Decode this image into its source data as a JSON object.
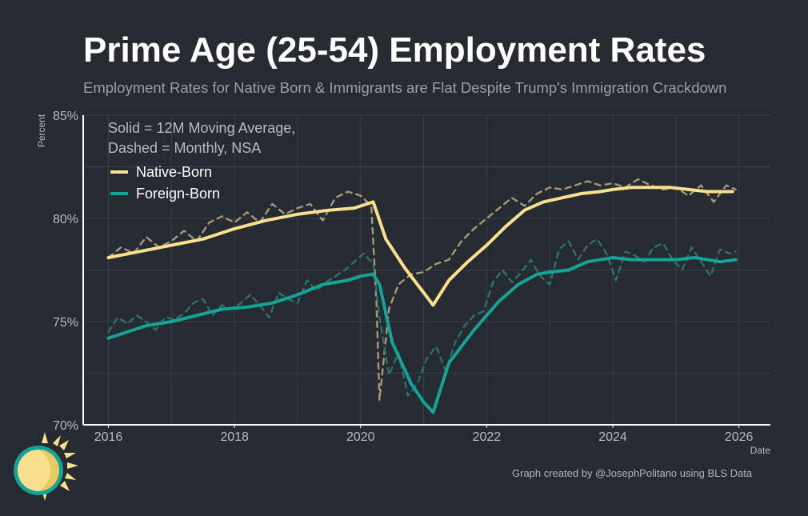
{
  "chart_data": {
    "type": "line",
    "title": "Prime Age (25-54) Employment Rates",
    "subtitle": "Employment Rates for Native Born & Immigrants are Flat Despite Trump's Immigration Crackdown",
    "xlabel": "Date",
    "ylabel": "Percent",
    "xlim": [
      2015.6,
      2026.5
    ],
    "ylim": [
      70,
      85
    ],
    "x_ticks": [
      2016,
      2018,
      2020,
      2022,
      2024,
      2026
    ],
    "x_tick_labels": [
      "2016",
      "2018",
      "2020",
      "2022",
      "2024",
      "2026"
    ],
    "y_ticks": [
      70,
      75,
      80,
      85
    ],
    "y_tick_labels": [
      "70%",
      "75%",
      "80%",
      "85%"
    ],
    "grid": true,
    "annotation_lines": [
      "Solid = 12M Moving Average,",
      "Dashed = Monthly, NSA"
    ],
    "legend": [
      {
        "name": "Native-Born",
        "color": "#f8e08e"
      },
      {
        "name": "Foreign-Born",
        "color": "#14a397"
      }
    ],
    "series": [
      {
        "name": "Native-Born 12M Moving Average",
        "style": "solid",
        "color": "#f8e08e",
        "x": [
          2016.0,
          2016.5,
          2017.0,
          2017.5,
          2018.0,
          2018.5,
          2019.0,
          2019.5,
          2019.9,
          2020.2,
          2020.4,
          2020.7,
          2021.0,
          2021.15,
          2021.4,
          2021.7,
          2022.0,
          2022.3,
          2022.6,
          2022.9,
          2023.2,
          2023.5,
          2023.8,
          2024.0,
          2024.3,
          2024.6,
          2024.9,
          2025.2,
          2025.5,
          2025.9
        ],
        "y": [
          78.1,
          78.4,
          78.7,
          79.0,
          79.5,
          79.9,
          80.2,
          80.4,
          80.5,
          80.8,
          79.0,
          77.6,
          76.4,
          75.8,
          77.0,
          77.9,
          78.7,
          79.6,
          80.4,
          80.8,
          81.0,
          81.2,
          81.3,
          81.4,
          81.5,
          81.5,
          81.5,
          81.4,
          81.3,
          81.3
        ]
      },
      {
        "name": "Native-Born Monthly NSA",
        "style": "dashed",
        "color": "#a7987a",
        "x": [
          2016.0,
          2016.2,
          2016.4,
          2016.6,
          2016.8,
          2017.0,
          2017.2,
          2017.4,
          2017.6,
          2017.8,
          2018.0,
          2018.2,
          2018.4,
          2018.6,
          2018.8,
          2019.0,
          2019.2,
          2019.4,
          2019.6,
          2019.8,
          2020.0,
          2020.17,
          2020.25,
          2020.3,
          2020.45,
          2020.6,
          2020.8,
          2021.0,
          2021.2,
          2021.4,
          2021.6,
          2021.8,
          2022.0,
          2022.2,
          2022.4,
          2022.6,
          2022.8,
          2023.0,
          2023.2,
          2023.4,
          2023.6,
          2023.8,
          2024.0,
          2024.2,
          2024.4,
          2024.6,
          2024.8,
          2025.0,
          2025.2,
          2025.4,
          2025.6,
          2025.8,
          2025.95
        ],
        "y": [
          78.1,
          78.6,
          78.3,
          79.1,
          78.6,
          78.9,
          79.4,
          78.9,
          79.8,
          80.1,
          79.8,
          80.3,
          79.8,
          80.7,
          80.2,
          80.5,
          80.7,
          79.9,
          81.0,
          81.3,
          81.1,
          80.6,
          76.0,
          71.2,
          75.6,
          76.8,
          77.3,
          77.4,
          77.8,
          78.0,
          78.9,
          79.5,
          80.0,
          80.5,
          81.0,
          80.6,
          81.2,
          81.5,
          81.4,
          81.6,
          81.8,
          81.6,
          81.7,
          81.5,
          81.9,
          81.6,
          81.4,
          81.5,
          81.1,
          81.6,
          80.8,
          81.6,
          81.4
        ]
      },
      {
        "name": "Foreign-Born 12M Moving Average",
        "style": "solid",
        "color": "#14a397",
        "x": [
          2016.0,
          2016.3,
          2016.6,
          2017.0,
          2017.4,
          2017.8,
          2018.2,
          2018.6,
          2019.0,
          2019.4,
          2019.8,
          2020.0,
          2020.2,
          2020.3,
          2020.5,
          2020.8,
          2021.0,
          2021.15,
          2021.4,
          2021.8,
          2022.2,
          2022.5,
          2022.8,
          2023.0,
          2023.3,
          2023.6,
          2024.0,
          2024.3,
          2024.6,
          2025.0,
          2025.3,
          2025.7,
          2025.95
        ],
        "y": [
          74.2,
          74.5,
          74.8,
          75.0,
          75.3,
          75.6,
          75.7,
          75.9,
          76.3,
          76.8,
          77.0,
          77.2,
          77.3,
          76.8,
          74.0,
          72.0,
          71.1,
          70.6,
          73.0,
          74.6,
          76.0,
          76.8,
          77.3,
          77.4,
          77.5,
          77.9,
          78.1,
          78.0,
          78.0,
          78.0,
          78.1,
          77.9,
          78.0
        ]
      },
      {
        "name": "Foreign-Born Monthly NSA",
        "style": "dashed",
        "color": "#2f6f6a",
        "x": [
          2016.0,
          2016.15,
          2016.3,
          2016.45,
          2016.6,
          2016.75,
          2016.9,
          2017.05,
          2017.2,
          2017.35,
          2017.5,
          2017.65,
          2017.8,
          2017.95,
          2018.1,
          2018.25,
          2018.4,
          2018.55,
          2018.7,
          2018.85,
          2019.0,
          2019.15,
          2019.3,
          2019.45,
          2019.6,
          2019.75,
          2019.9,
          2020.05,
          2020.2,
          2020.3,
          2020.45,
          2020.6,
          2020.75,
          2020.9,
          2021.05,
          2021.2,
          2021.35,
          2021.5,
          2021.65,
          2021.8,
          2021.95,
          2022.1,
          2022.25,
          2022.4,
          2022.55,
          2022.7,
          2022.85,
          2023.0,
          2023.15,
          2023.3,
          2023.45,
          2023.6,
          2023.75,
          2023.9,
          2024.05,
          2024.2,
          2024.35,
          2024.5,
          2024.65,
          2024.8,
          2024.95,
          2025.1,
          2025.25,
          2025.4,
          2025.55,
          2025.7,
          2025.85,
          2025.95
        ],
        "y": [
          74.5,
          75.2,
          74.9,
          75.3,
          75.0,
          74.6,
          75.2,
          75.1,
          75.4,
          75.9,
          76.1,
          75.3,
          75.8,
          75.6,
          75.9,
          76.3,
          75.8,
          75.2,
          76.4,
          76.1,
          75.9,
          77.0,
          76.5,
          76.9,
          77.2,
          77.5,
          77.9,
          78.3,
          77.8,
          75.2,
          72.4,
          73.5,
          71.4,
          72.0,
          73.2,
          73.8,
          72.6,
          74.0,
          74.8,
          75.3,
          75.5,
          76.9,
          77.5,
          76.9,
          77.4,
          78.0,
          77.2,
          76.8,
          78.5,
          78.9,
          78.0,
          78.7,
          79.0,
          78.3,
          77.0,
          78.4,
          78.2,
          77.9,
          78.6,
          78.8,
          78.0,
          77.5,
          78.6,
          77.9,
          77.2,
          78.5,
          78.3,
          78.4
        ]
      }
    ]
  },
  "footer": {
    "credit": "Graph created by @JosephPolitano using BLS Data"
  },
  "colors": {
    "background": "#262a31",
    "grid": "#3b4049",
    "axis": "#ffffff",
    "tick_text": "#b6bac2",
    "annotation_text": "#b6bac2",
    "logo_sun": "#f8e08e",
    "logo_ring": "#14a397"
  },
  "logo": {
    "icon": "sun-icon"
  }
}
